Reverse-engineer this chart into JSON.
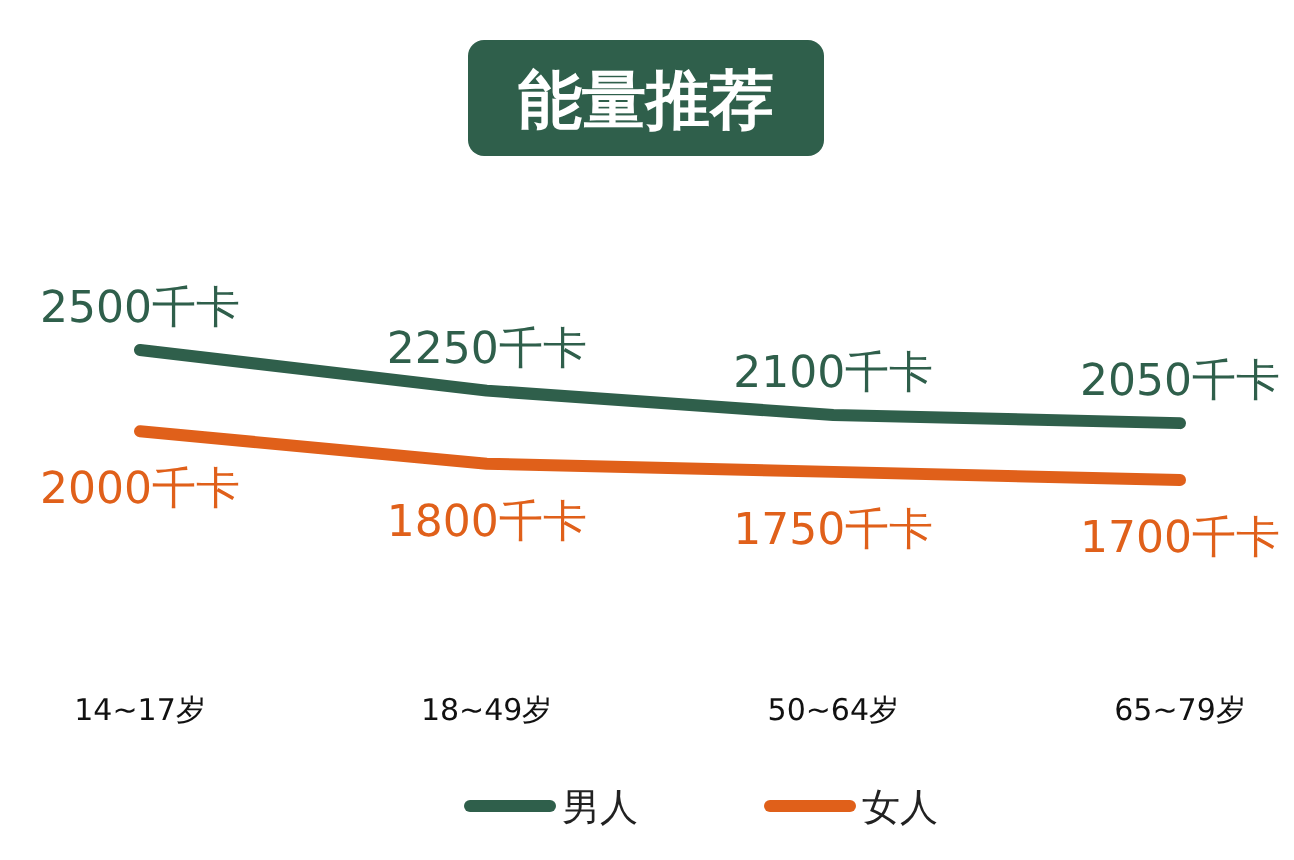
{
  "chart_data": {
    "type": "line",
    "title": "能量推荐",
    "relative": false,
    "categories": [
      "14~17岁",
      "18~49岁",
      "50~64岁",
      "65~79岁"
    ],
    "series": [
      {
        "name": "男人",
        "color": "#2f5f4b",
        "values": [
          2500,
          2250,
          2100,
          2050
        ],
        "value_labels": [
          "2500千卡",
          "2250千卡",
          "2100千卡",
          "2050千卡"
        ]
      },
      {
        "name": "女人",
        "color": "#e0601a",
        "values": [
          2000,
          1800,
          1750,
          1700
        ],
        "value_labels": [
          "2000千卡",
          "1800千卡",
          "1750千卡",
          "1700千卡"
        ]
      }
    ],
    "legend": "bottom",
    "marker": "none",
    "line_style": "solid",
    "grid": false
  }
}
